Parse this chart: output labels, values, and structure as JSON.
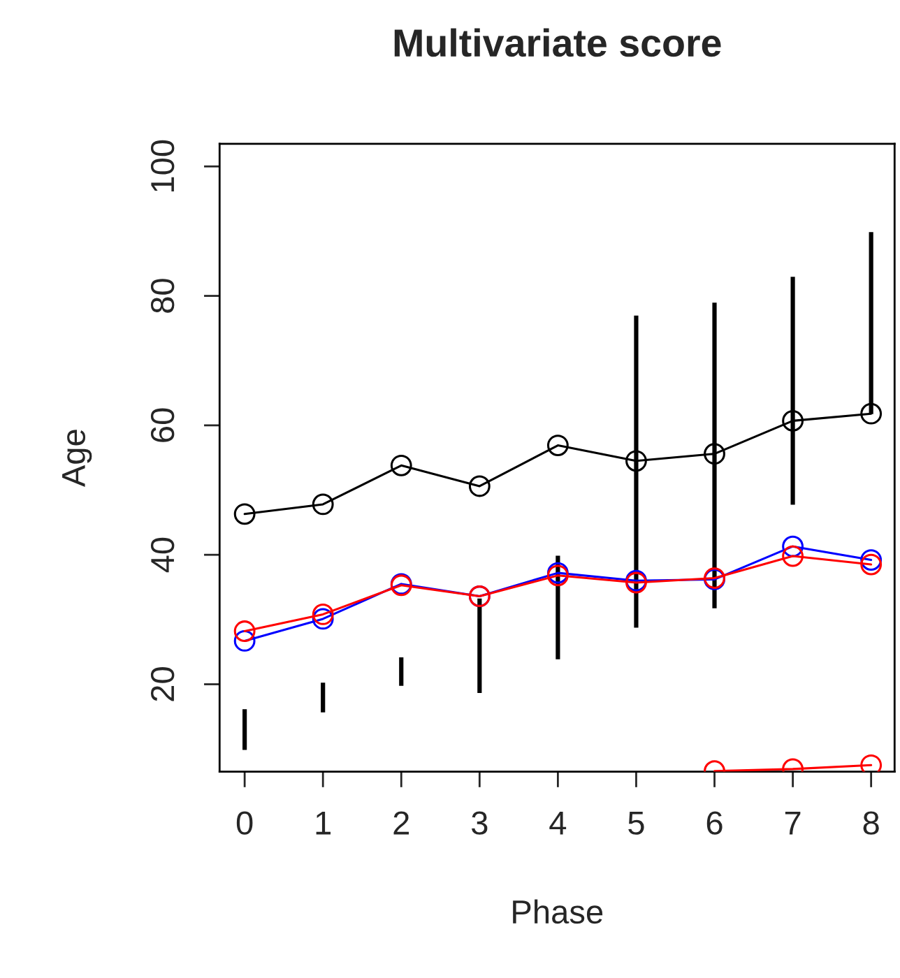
{
  "chart_data": {
    "type": "line",
    "title": "Multivariate score",
    "xlabel": "Phase",
    "ylabel": "Age",
    "x": [
      0,
      1,
      2,
      3,
      4,
      5,
      6,
      7,
      8
    ],
    "xlim": [
      -0.32,
      8.3
    ],
    "xticks": [
      0,
      1,
      2,
      3,
      4,
      5,
      6,
      7,
      8
    ],
    "ylim": [
      6.5,
      103.5
    ],
    "yticks": [
      20,
      40,
      60,
      80,
      100
    ],
    "grid": false,
    "legend": false,
    "marker": "circle",
    "line_style": "solid",
    "series": [
      {
        "type": "bar",
        "color": "#000000",
        "base": [
          9.7,
          15.5,
          19.6,
          18.5,
          23.7,
          28.6,
          31.6,
          47.6,
          61.6
        ],
        "values": [
          6.6,
          4.9,
          4.7,
          14.9,
          16.3,
          48.5,
          47.5,
          35.5,
          28.4
        ]
      },
      {
        "color": "#000000",
        "values": [
          46.3,
          47.8,
          53.8,
          50.6,
          56.9,
          54.5,
          55.6,
          60.7,
          61.8
        ]
      },
      {
        "color": "#0000ff",
        "values": [
          26.7,
          30.1,
          35.5,
          33.6,
          37.2,
          36.0,
          36.2,
          41.3,
          39.2
        ]
      },
      {
        "color": "#ff0000",
        "values": [
          28.2,
          30.8,
          35.3,
          33.6,
          36.8,
          35.7,
          36.4,
          39.8,
          38.5
        ]
      },
      {
        "color": "#ff0000",
        "values": [
          null,
          null,
          null,
          null,
          null,
          null,
          6.6,
          6.9,
          7.5
        ]
      }
    ]
  }
}
